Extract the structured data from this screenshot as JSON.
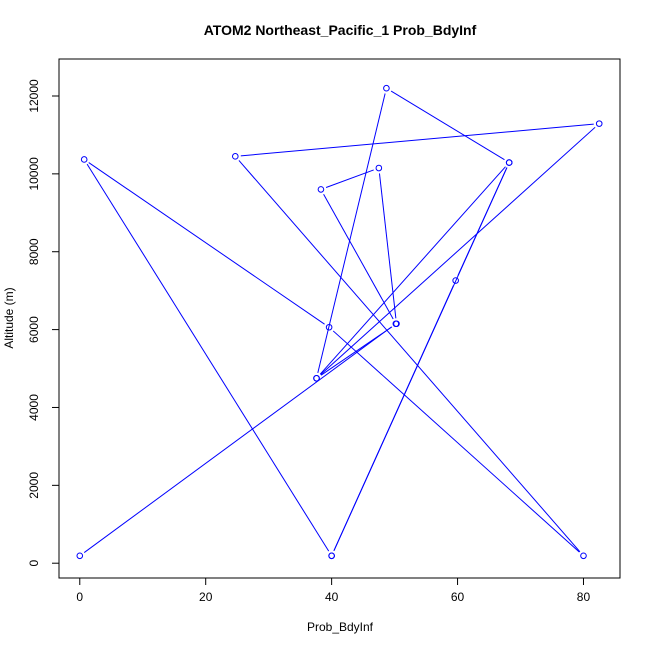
{
  "chart_data": {
    "type": "line",
    "title": "ATOM2 Northeast_Pacific_1 Prob_BdyInf",
    "xlabel": "Prob_BdyInf",
    "ylabel": "Altitude (m)",
    "xlim": [
      -3.3,
      85.8
    ],
    "ylim": [
      -380,
      12950
    ],
    "xticks": [
      0,
      20,
      40,
      60,
      80
    ],
    "yticks": [
      0,
      2000,
      4000,
      6000,
      8000,
      10000,
      12000
    ],
    "xtick_labels": [
      "0",
      "20",
      "40",
      "60",
      "80"
    ],
    "ytick_labels": [
      "0",
      "2000",
      "4000",
      "6000",
      "8000",
      "10000",
      "12000"
    ],
    "grid": false,
    "line_color": "#0000ff",
    "series": [
      {
        "x": [
          0.0,
          50.2,
          38.3,
          47.5,
          50.3,
          37.6,
          68.2,
          40.0,
          0.7,
          39.6,
          80.0,
          24.7,
          82.5,
          37.6,
          48.7,
          68.2,
          59.7,
          40.0
        ],
        "y": [
          190,
          6150,
          9600,
          10150,
          6150,
          4750,
          10290,
          190,
          10370,
          6060,
          190,
          10450,
          11290,
          4750,
          12200,
          10290,
          7260,
          190
        ]
      }
    ]
  }
}
